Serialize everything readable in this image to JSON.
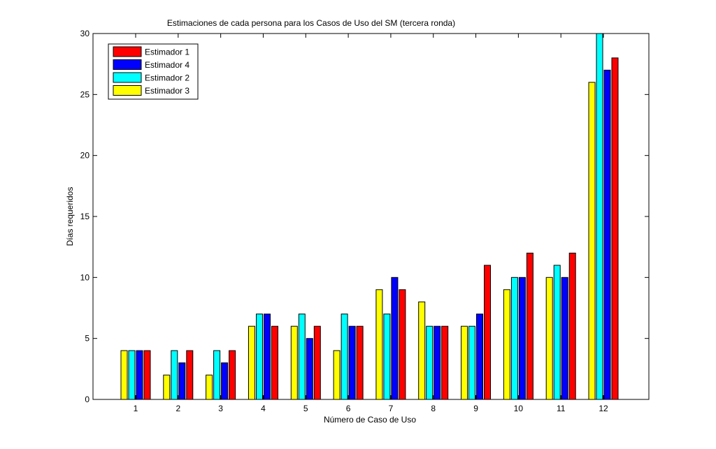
{
  "chart_data": {
    "type": "bar",
    "title": "Estimaciones de cada persona para los Casos de Uso del SM (tercera ronda)",
    "xlabel": "Número de Caso de Uso",
    "ylabel": "Días requeridos",
    "categories": [
      "1",
      "2",
      "3",
      "4",
      "5",
      "6",
      "7",
      "8",
      "9",
      "10",
      "11",
      "12"
    ],
    "ylim": [
      0,
      30
    ],
    "yticks": [
      0,
      5,
      10,
      15,
      20,
      25,
      30
    ],
    "grid": false,
    "legend_position": "top-left",
    "series": [
      {
        "name": "Estimador 3",
        "color": "#ffff00",
        "values": [
          4,
          2,
          2,
          6,
          6,
          4,
          9,
          8,
          6,
          9,
          10,
          26
        ]
      },
      {
        "name": "Estimador 2",
        "color": "#00ffff",
        "values": [
          4,
          4,
          4,
          7,
          7,
          7,
          7,
          6,
          6,
          10,
          11,
          30
        ]
      },
      {
        "name": "Estimador 4",
        "color": "#0000ff",
        "values": [
          4,
          3,
          3,
          7,
          5,
          6,
          10,
          6,
          7,
          10,
          10,
          27
        ]
      },
      {
        "name": "Estimador 1",
        "color": "#ff0000",
        "values": [
          4,
          4,
          4,
          6,
          6,
          6,
          9,
          6,
          11,
          12,
          12,
          28
        ]
      }
    ],
    "legend_order": [
      "Estimador 1",
      "Estimador 4",
      "Estimador 2",
      "Estimador 3"
    ]
  }
}
